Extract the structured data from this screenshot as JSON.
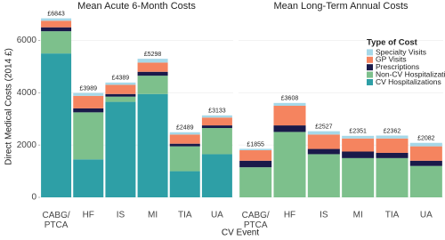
{
  "chart_data": [
    {
      "type": "bar",
      "stacked": true,
      "title": "Mean Acute 6-Month Costs",
      "y_label": "Direct Medical Costs (2014 £)",
      "x_label": "CV Event",
      "legend_title": "Type of Cost",
      "categories": [
        "CABG/ PTCA",
        "HF",
        "IS",
        "MI",
        "TIA",
        "UA"
      ],
      "series": [
        {
          "name": "CV Hospitalizations",
          "color": "#2e9fa6",
          "values": [
            5500,
            1450,
            3650,
            3950,
            1000,
            1650
          ]
        },
        {
          "name": "Non-CV Hospitalizations",
          "color": "#7dc08c",
          "values": [
            850,
            1800,
            200,
            700,
            950,
            1000
          ]
        },
        {
          "name": "Prescriptions",
          "color": "#1a1a4a",
          "values": [
            150,
            150,
            100,
            150,
            100,
            100
          ]
        },
        {
          "name": "GP Visits",
          "color": "#f5845f",
          "values": [
            250,
            480,
            350,
            350,
            350,
            300
          ]
        },
        {
          "name": "Specialty Visits",
          "color": "#a6d8e8",
          "values": [
            93,
            109,
            89,
            148,
            89,
            83
          ]
        }
      ],
      "totals": [
        6843,
        3989,
        4389,
        5298,
        2489,
        3133
      ],
      "total_labels": [
        "£6843",
        "£3989",
        "£4389",
        "£5298",
        "£2489",
        "£3133"
      ],
      "ylim": [
        0,
        7000
      ],
      "yticks": [
        0,
        2000,
        4000,
        6000
      ],
      "grid": true
    },
    {
      "type": "bar",
      "stacked": true,
      "title": "Mean Long-Term Annual Costs",
      "categories": [
        "CABG/ PTCA",
        "HF",
        "IS",
        "MI",
        "TIA",
        "UA"
      ],
      "series": [
        {
          "name": "CV Hospitalizations",
          "color": "#2e9fa6",
          "values": [
            0,
            0,
            0,
            0,
            0,
            0
          ]
        },
        {
          "name": "Non-CV Hospitalizations",
          "color": "#7dc08c",
          "values": [
            1150,
            2500,
            1650,
            1500,
            1500,
            1200
          ]
        },
        {
          "name": "Prescriptions",
          "color": "#1a1a4a",
          "values": [
            250,
            250,
            200,
            250,
            200,
            200
          ]
        },
        {
          "name": "GP Visits",
          "color": "#f5845f",
          "values": [
            400,
            750,
            550,
            500,
            550,
            550
          ]
        },
        {
          "name": "Specialty Visits",
          "color": "#a6d8e8",
          "values": [
            55,
            108,
            127,
            101,
            112,
            132
          ]
        }
      ],
      "totals": [
        1855,
        3608,
        2527,
        2351,
        2362,
        2082
      ],
      "total_labels": [
        "£1855",
        "£3608",
        "£2527",
        "£2351",
        "£2362",
        "£2082"
      ],
      "ylim": [
        0,
        7000
      ],
      "yticks": [
        0,
        2000,
        4000,
        6000
      ],
      "grid": true
    }
  ]
}
